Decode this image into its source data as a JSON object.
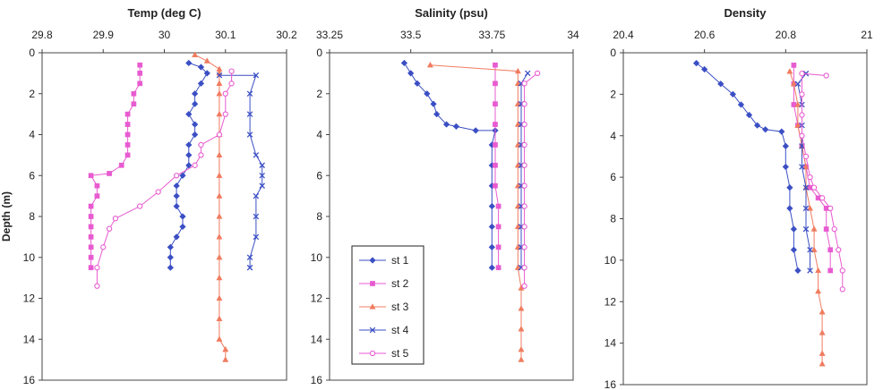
{
  "chart_data": [
    {
      "type": "line",
      "title": "Temp (deg C)",
      "xlabel": "",
      "ylabel": "Depth (m)",
      "xlim": [
        29.8,
        30.2
      ],
      "ylim": [
        0,
        16
      ],
      "y_inverted": true,
      "x_axis_position": "top",
      "xticks": [
        "29.8",
        "29.9",
        "30",
        "30.1",
        "30.2"
      ],
      "yticks": [
        "0",
        "2",
        "4",
        "6",
        "8",
        "10",
        "12",
        "14",
        "16"
      ],
      "series": [
        {
          "name": "st 1",
          "color": "#3b4fc4",
          "marker": "diamond",
          "points": [
            [
              30.04,
              0.5
            ],
            [
              30.06,
              0.7
            ],
            [
              30.07,
              1.0
            ],
            [
              30.06,
              1.5
            ],
            [
              30.05,
              2.0
            ],
            [
              30.05,
              2.5
            ],
            [
              30.04,
              3.0
            ],
            [
              30.05,
              3.5
            ],
            [
              30.05,
              4.0
            ],
            [
              30.04,
              4.5
            ],
            [
              30.04,
              5.0
            ],
            [
              30.04,
              5.5
            ],
            [
              30.03,
              6.0
            ],
            [
              30.02,
              6.5
            ],
            [
              30.02,
              7.0
            ],
            [
              30.02,
              7.5
            ],
            [
              30.03,
              8.0
            ],
            [
              30.03,
              8.5
            ],
            [
              30.02,
              9.0
            ],
            [
              30.01,
              9.5
            ],
            [
              30.01,
              10.0
            ],
            [
              30.01,
              10.5
            ]
          ]
        },
        {
          "name": "st 2",
          "color": "#e85bd0",
          "marker": "square",
          "points": [
            [
              29.96,
              0.6
            ],
            [
              29.96,
              1.0
            ],
            [
              29.96,
              1.5
            ],
            [
              29.95,
              2.0
            ],
            [
              29.95,
              2.5
            ],
            [
              29.94,
              3.0
            ],
            [
              29.94,
              3.5
            ],
            [
              29.94,
              4.0
            ],
            [
              29.94,
              4.5
            ],
            [
              29.94,
              5.0
            ],
            [
              29.93,
              5.5
            ],
            [
              29.91,
              5.9
            ],
            [
              29.88,
              6.0
            ],
            [
              29.89,
              6.5
            ],
            [
              29.89,
              7.0
            ],
            [
              29.88,
              7.5
            ],
            [
              29.88,
              8.0
            ],
            [
              29.88,
              8.5
            ],
            [
              29.88,
              9.0
            ],
            [
              29.88,
              9.5
            ],
            [
              29.88,
              10.0
            ],
            [
              29.88,
              10.5
            ]
          ]
        },
        {
          "name": "st 3",
          "color": "#f07c60",
          "marker": "triangle",
          "points": [
            [
              30.05,
              0.1
            ],
            [
              30.07,
              0.4
            ],
            [
              30.09,
              0.8
            ],
            [
              30.09,
              1.0
            ],
            [
              30.09,
              1.5
            ],
            [
              30.09,
              2.0
            ],
            [
              30.09,
              3.0
            ],
            [
              30.09,
              4.0
            ],
            [
              30.09,
              5.0
            ],
            [
              30.09,
              6.0
            ],
            [
              30.09,
              7.0
            ],
            [
              30.09,
              8.0
            ],
            [
              30.09,
              9.0
            ],
            [
              30.09,
              10.0
            ],
            [
              30.09,
              11.0
            ],
            [
              30.09,
              12.0
            ],
            [
              30.09,
              13.0
            ],
            [
              30.09,
              14.0
            ],
            [
              30.1,
              14.5
            ],
            [
              30.1,
              15.0
            ]
          ]
        },
        {
          "name": "st 4",
          "color": "#3b4fc4",
          "marker": "x",
          "points": [
            [
              30.09,
              1.1
            ],
            [
              30.15,
              1.1
            ],
            [
              30.14,
              2.0
            ],
            [
              30.14,
              3.0
            ],
            [
              30.14,
              4.0
            ],
            [
              30.15,
              5.0
            ],
            [
              30.16,
              5.5
            ],
            [
              30.16,
              6.0
            ],
            [
              30.16,
              6.5
            ],
            [
              30.15,
              7.0
            ],
            [
              30.15,
              8.0
            ],
            [
              30.15,
              9.0
            ],
            [
              30.14,
              10.0
            ],
            [
              30.14,
              10.5
            ]
          ]
        },
        {
          "name": "st 5",
          "color": "#e85bd0",
          "marker": "circle",
          "points": [
            [
              30.11,
              0.9
            ],
            [
              30.11,
              1.5
            ],
            [
              30.1,
              2.0
            ],
            [
              30.1,
              3.0
            ],
            [
              30.09,
              4.0
            ],
            [
              30.06,
              4.5
            ],
            [
              30.06,
              5.0
            ],
            [
              30.05,
              5.5
            ],
            [
              30.02,
              6.0
            ],
            [
              29.99,
              6.8
            ],
            [
              29.96,
              7.5
            ],
            [
              29.92,
              8.1
            ],
            [
              29.91,
              8.6
            ],
            [
              29.9,
              9.5
            ],
            [
              29.89,
              10.5
            ],
            [
              29.89,
              11.4
            ]
          ]
        }
      ]
    },
    {
      "type": "line",
      "title": "Salinity (psu)",
      "xlabel": "",
      "ylabel": "",
      "xlim": [
        33.25,
        34
      ],
      "ylim": [
        0,
        16
      ],
      "y_inverted": true,
      "x_axis_position": "top",
      "xticks": [
        "33.25",
        "33.5",
        "33.75",
        "34"
      ],
      "yticks": [
        "0",
        "2",
        "4",
        "6",
        "8",
        "10",
        "12",
        "14",
        "16"
      ],
      "legend": [
        "st 1",
        "st 2",
        "st 3",
        "st 4",
        "st 5"
      ],
      "legend_position": "bottom-left",
      "series": [
        {
          "name": "st 1",
          "color": "#3b4fc4",
          "marker": "diamond",
          "points": [
            [
              33.48,
              0.5
            ],
            [
              33.5,
              1.0
            ],
            [
              33.52,
              1.5
            ],
            [
              33.55,
              2.0
            ],
            [
              33.57,
              2.5
            ],
            [
              33.58,
              3.0
            ],
            [
              33.61,
              3.5
            ],
            [
              33.64,
              3.6
            ],
            [
              33.7,
              3.8
            ],
            [
              33.76,
              3.8
            ],
            [
              33.75,
              4.5
            ],
            [
              33.75,
              5.5
            ],
            [
              33.75,
              6.5
            ],
            [
              33.75,
              7.5
            ],
            [
              33.75,
              8.5
            ],
            [
              33.75,
              9.5
            ],
            [
              33.75,
              10.5
            ]
          ]
        },
        {
          "name": "st 2",
          "color": "#e85bd0",
          "marker": "square",
          "points": [
            [
              33.76,
              0.6
            ],
            [
              33.76,
              1.5
            ],
            [
              33.76,
              2.5
            ],
            [
              33.76,
              3.5
            ],
            [
              33.76,
              4.5
            ],
            [
              33.76,
              5.5
            ],
            [
              33.76,
              6.5
            ],
            [
              33.77,
              7.5
            ],
            [
              33.77,
              8.5
            ],
            [
              33.77,
              9.5
            ],
            [
              33.77,
              10.5
            ]
          ]
        },
        {
          "name": "st 3",
          "color": "#f07c60",
          "marker": "triangle",
          "points": [
            [
              33.56,
              0.6
            ],
            [
              33.83,
              0.9
            ],
            [
              33.83,
              1.5
            ],
            [
              33.83,
              2.5
            ],
            [
              33.83,
              3.5
            ],
            [
              33.83,
              4.5
            ],
            [
              33.83,
              5.5
            ],
            [
              33.83,
              6.5
            ],
            [
              33.83,
              7.5
            ],
            [
              33.83,
              8.5
            ],
            [
              33.83,
              9.5
            ],
            [
              33.83,
              10.5
            ],
            [
              33.84,
              11.5
            ],
            [
              33.84,
              12.5
            ],
            [
              33.84,
              13.5
            ],
            [
              33.84,
              14.5
            ],
            [
              33.84,
              15.0
            ]
          ]
        },
        {
          "name": "st 4",
          "color": "#3b4fc4",
          "marker": "x",
          "points": [
            [
              33.86,
              1.0
            ],
            [
              33.84,
              1.5
            ],
            [
              33.84,
              2.5
            ],
            [
              33.84,
              3.5
            ],
            [
              33.84,
              4.5
            ],
            [
              33.84,
              5.5
            ],
            [
              33.84,
              6.5
            ],
            [
              33.84,
              7.5
            ],
            [
              33.84,
              8.5
            ],
            [
              33.84,
              9.5
            ],
            [
              33.84,
              10.5
            ]
          ]
        },
        {
          "name": "st 5",
          "color": "#e85bd0",
          "marker": "circle",
          "points": [
            [
              33.89,
              1.0
            ],
            [
              33.85,
              1.5
            ],
            [
              33.85,
              2.5
            ],
            [
              33.85,
              3.5
            ],
            [
              33.85,
              4.5
            ],
            [
              33.85,
              5.5
            ],
            [
              33.85,
              6.5
            ],
            [
              33.85,
              7.5
            ],
            [
              33.85,
              8.5
            ],
            [
              33.85,
              9.5
            ],
            [
              33.85,
              10.5
            ],
            [
              33.85,
              11.4
            ]
          ]
        }
      ]
    },
    {
      "type": "line",
      "title": "Density",
      "xlabel": "",
      "ylabel": "",
      "xlim": [
        20.4,
        21
      ],
      "ylim": [
        0,
        16
      ],
      "y_inverted": true,
      "x_axis_position": "top",
      "xticks": [
        "20.4",
        "20.6",
        "20.8",
        "21"
      ],
      "yticks": [
        "0",
        "2",
        "4",
        "6",
        "8",
        "10",
        "12",
        "14",
        "16"
      ],
      "series": [
        {
          "name": "st 1",
          "color": "#3b4fc4",
          "marker": "diamond",
          "points": [
            [
              20.58,
              0.5
            ],
            [
              20.6,
              0.8
            ],
            [
              20.64,
              1.5
            ],
            [
              20.67,
              2.0
            ],
            [
              20.69,
              2.5
            ],
            [
              20.71,
              3.0
            ],
            [
              20.73,
              3.5
            ],
            [
              20.75,
              3.7
            ],
            [
              20.79,
              3.8
            ],
            [
              20.8,
              4.5
            ],
            [
              20.8,
              5.5
            ],
            [
              20.81,
              6.5
            ],
            [
              20.81,
              7.5
            ],
            [
              20.82,
              8.5
            ],
            [
              20.82,
              9.5
            ],
            [
              20.83,
              10.5
            ]
          ]
        },
        {
          "name": "st 2",
          "color": "#e85bd0",
          "marker": "square",
          "points": [
            [
              20.82,
              0.6
            ],
            [
              20.82,
              1.5
            ],
            [
              20.82,
              2.5
            ],
            [
              20.83,
              3.5
            ],
            [
              20.84,
              4.5
            ],
            [
              20.85,
              5.5
            ],
            [
              20.86,
              6.5
            ],
            [
              20.88,
              7.0
            ],
            [
              20.9,
              7.5
            ],
            [
              20.9,
              8.5
            ],
            [
              20.91,
              9.5
            ],
            [
              20.91,
              10.5
            ]
          ]
        },
        {
          "name": "st 3",
          "color": "#f07c60",
          "marker": "triangle",
          "points": [
            [
              20.81,
              0.9
            ],
            [
              20.82,
              1.5
            ],
            [
              20.83,
              2.5
            ],
            [
              20.83,
              3.5
            ],
            [
              20.84,
              4.5
            ],
            [
              20.85,
              5.5
            ],
            [
              20.85,
              6.5
            ],
            [
              20.86,
              7.5
            ],
            [
              20.87,
              8.5
            ],
            [
              20.87,
              9.5
            ],
            [
              20.88,
              10.5
            ],
            [
              20.88,
              11.5
            ],
            [
              20.89,
              12.5
            ],
            [
              20.89,
              13.5
            ],
            [
              20.89,
              14.5
            ],
            [
              20.89,
              15.0
            ]
          ]
        },
        {
          "name": "st 4",
          "color": "#3b4fc4",
          "marker": "x",
          "points": [
            [
              20.85,
              1.0
            ],
            [
              20.83,
              1.5
            ],
            [
              20.84,
              2.5
            ],
            [
              20.84,
              3.5
            ],
            [
              20.84,
              4.5
            ],
            [
              20.84,
              5.5
            ],
            [
              20.85,
              6.5
            ],
            [
              20.85,
              7.5
            ],
            [
              20.85,
              8.5
            ],
            [
              20.86,
              9.5
            ],
            [
              20.86,
              10.5
            ]
          ]
        },
        {
          "name": "st 5",
          "color": "#e85bd0",
          "marker": "circle",
          "points": [
            [
              20.9,
              1.1
            ],
            [
              20.84,
              1.0
            ],
            [
              20.84,
              2.0
            ],
            [
              20.84,
              3.0
            ],
            [
              20.84,
              4.0
            ],
            [
              20.85,
              5.0
            ],
            [
              20.86,
              6.0
            ],
            [
              20.87,
              6.5
            ],
            [
              20.89,
              7.0
            ],
            [
              20.91,
              7.5
            ],
            [
              20.92,
              8.5
            ],
            [
              20.93,
              9.5
            ],
            [
              20.94,
              10.5
            ],
            [
              20.94,
              11.4
            ]
          ]
        }
      ]
    }
  ]
}
